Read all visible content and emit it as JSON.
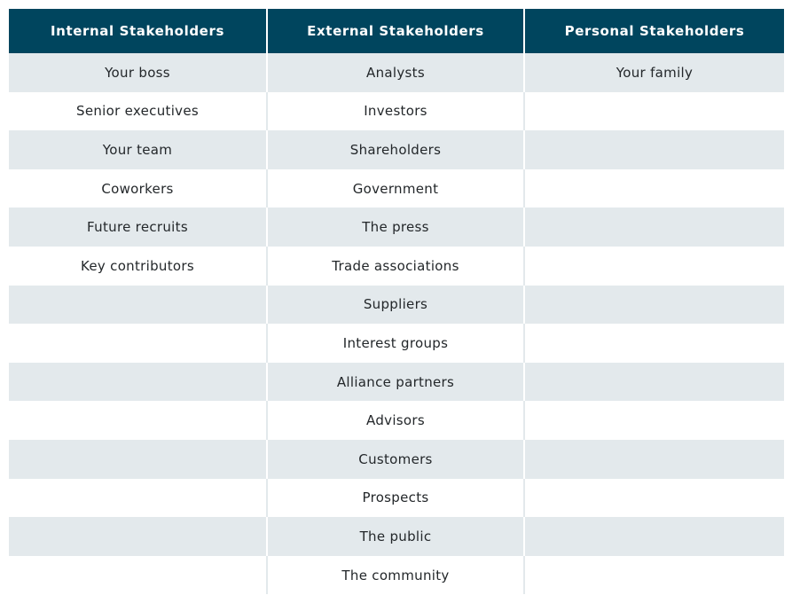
{
  "table": {
    "headers": [
      "Internal Stakeholders",
      "External Stakeholders",
      "Personal Stakeholders"
    ],
    "rows": [
      [
        "Your boss",
        "Analysts",
        "Your family"
      ],
      [
        "Senior executives",
        "Investors",
        ""
      ],
      [
        "Your team",
        "Shareholders",
        ""
      ],
      [
        "Coworkers",
        "Government",
        ""
      ],
      [
        "Future recruits",
        "The press",
        ""
      ],
      [
        "Key contributors",
        "Trade associations",
        ""
      ],
      [
        "",
        "Suppliers",
        ""
      ],
      [
        "",
        "Interest groups",
        ""
      ],
      [
        "",
        "Alliance partners",
        ""
      ],
      [
        "",
        "Advisors",
        ""
      ],
      [
        "",
        "Customers",
        ""
      ],
      [
        "",
        "Prospects",
        ""
      ],
      [
        "",
        "The public",
        ""
      ],
      [
        "",
        "The community",
        ""
      ]
    ]
  },
  "colors": {
    "header_bg": "#00455e",
    "header_text": "#ffffff",
    "row_shaded": "#e3e9ec",
    "row_plain": "#ffffff",
    "text": "#23272a"
  }
}
